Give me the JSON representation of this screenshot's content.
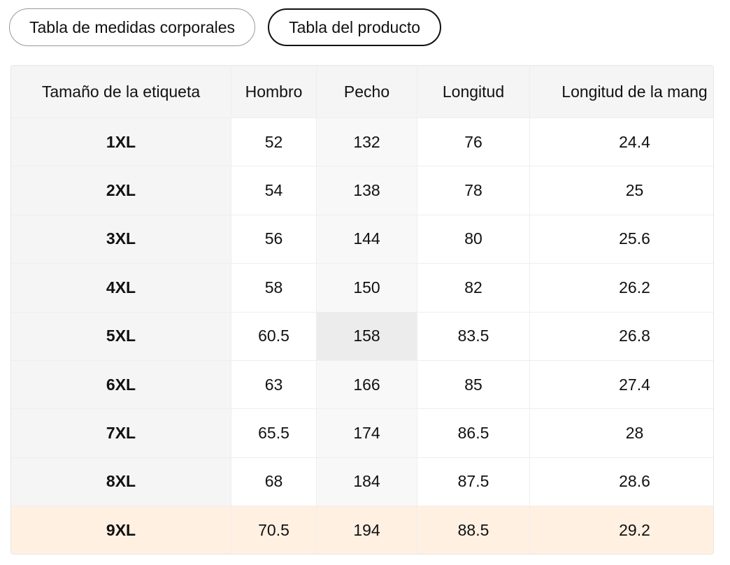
{
  "tabs": [
    "Tabla de medidas corporales",
    "Tabla del producto"
  ],
  "selected_tab": 1,
  "table": {
    "headers": [
      "Tamaño de la etiqueta",
      "Hombro",
      "Pecho",
      "Longitud",
      "Longitud de la mang"
    ],
    "rows": [
      [
        "1XL",
        "52",
        "132",
        "76",
        "24.4"
      ],
      [
        "2XL",
        "54",
        "138",
        "78",
        "25"
      ],
      [
        "3XL",
        "56",
        "144",
        "80",
        "25.6"
      ],
      [
        "4XL",
        "58",
        "150",
        "82",
        "26.2"
      ],
      [
        "5XL",
        "60.5",
        "158",
        "83.5",
        "26.8"
      ],
      [
        "6XL",
        "63",
        "166",
        "85",
        "27.4"
      ],
      [
        "7XL",
        "65.5",
        "174",
        "86.5",
        "28"
      ],
      [
        "8XL",
        "68",
        "184",
        "87.5",
        "28.6"
      ],
      [
        "9XL",
        "70.5",
        "194",
        "88.5",
        "29.2"
      ]
    ],
    "highlighted_row": 8
  }
}
